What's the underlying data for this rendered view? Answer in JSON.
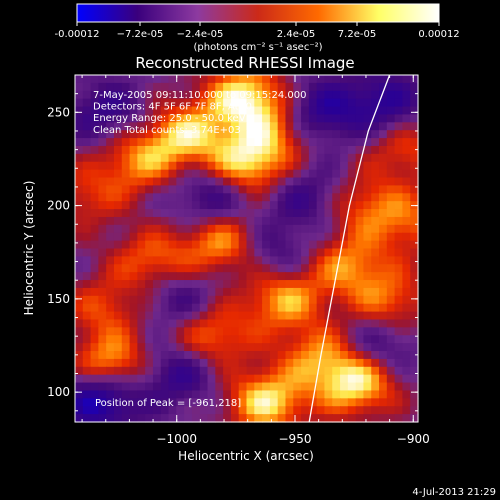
{
  "chart_data": {
    "type": "heatmap",
    "title": "Reconstructed RHESSI Image",
    "xlabel": "Heliocentric X (arcsec)",
    "ylabel": "Heliocentric Y (arcsec)",
    "xlim": [
      -1043,
      -898
    ],
    "ylim": [
      84,
      270
    ],
    "x_ticks": [
      -1000,
      -950,
      -900
    ],
    "x_tick_labels": [
      "−1000",
      "−950",
      "−900"
    ],
    "y_ticks": [
      100,
      150,
      200,
      250
    ],
    "y_tick_labels": [
      "100",
      "150",
      "200",
      "250"
    ],
    "colorbar": {
      "range": [
        -0.00012,
        0.00012
      ],
      "tick_labels": [
        "-0.00012",
        "−7.2e-05",
        "−2.4e-05",
        "2.4e-05",
        "7.2e-05",
        "0.00012"
      ],
      "unit_label": "(photons cm⁻² s⁻¹ asec⁻²)",
      "colormap": [
        "#0000ff",
        "#3a007d",
        "#8d3aa0",
        "#cc2a18",
        "#ff6a00",
        "#ffff66",
        "#ffffff"
      ]
    },
    "annotations": [
      "7-May-2005 09:11:10.000 to 09:15:24.000",
      "Detectors: 4F 5F 6F 7F 8F, Att 0",
      "Energy Range: 25.0 - 50.0 keV",
      "Clean     Total counts: 3.74E+03"
    ],
    "peak_text": "Position of Peak = [-961,218]",
    "limb_curve": [
      [
        -944,
        84
      ],
      [
        -939,
        120
      ],
      [
        -933,
        160
      ],
      [
        -927,
        200
      ],
      [
        -919,
        240
      ],
      [
        -910,
        270
      ]
    ],
    "peaks": [
      {
        "x": -1028,
        "y": 113,
        "v": 0.9
      },
      {
        "x": -971,
        "y": 258,
        "v": 0.9
      },
      {
        "x": -996,
        "y": 238,
        "v": 0.75
      },
      {
        "x": -1016,
        "y": 224,
        "v": 0.6
      },
      {
        "x": -970,
        "y": 222,
        "v": 0.85
      },
      {
        "x": -1010,
        "y": 170,
        "v": 0.55
      },
      {
        "x": -980,
        "y": 180,
        "v": 0.7
      },
      {
        "x": -955,
        "y": 150,
        "v": 0.7
      },
      {
        "x": -927,
        "y": 168,
        "v": 0.6
      },
      {
        "x": -910,
        "y": 148,
        "v": 0.55
      },
      {
        "x": -903,
        "y": 230,
        "v": 0.45
      },
      {
        "x": -920,
        "y": 200,
        "v": 0.5
      },
      {
        "x": -940,
        "y": 120,
        "v": 0.55
      },
      {
        "x": -924,
        "y": 105,
        "v": 0.9
      },
      {
        "x": -962,
        "y": 95,
        "v": 0.85
      },
      {
        "x": -985,
        "y": 130,
        "v": 0.6
      },
      {
        "x": -1030,
        "y": 145,
        "v": 0.45
      },
      {
        "x": -958,
        "y": 240,
        "v": 0.5
      },
      {
        "x": -1038,
        "y": 205,
        "v": 0.4
      },
      {
        "x": -900,
        "y": 190,
        "v": 0.45
      },
      {
        "x": -1032,
        "y": 98,
        "v": -0.95
      },
      {
        "x": -1000,
        "y": 110,
        "v": -0.5
      },
      {
        "x": -940,
        "y": 250,
        "v": -0.6
      },
      {
        "x": -912,
        "y": 255,
        "v": -0.55
      },
      {
        "x": -985,
        "y": 205,
        "v": -0.5
      },
      {
        "x": -1030,
        "y": 250,
        "v": -0.45
      },
      {
        "x": -960,
        "y": 175,
        "v": -0.4
      },
      {
        "x": -915,
        "y": 125,
        "v": -0.45
      },
      {
        "x": -1000,
        "y": 150,
        "v": -0.4
      },
      {
        "x": -945,
        "y": 205,
        "v": -0.4
      }
    ]
  },
  "footer": {
    "timestamp": "4-Jul-2013 21:29"
  }
}
